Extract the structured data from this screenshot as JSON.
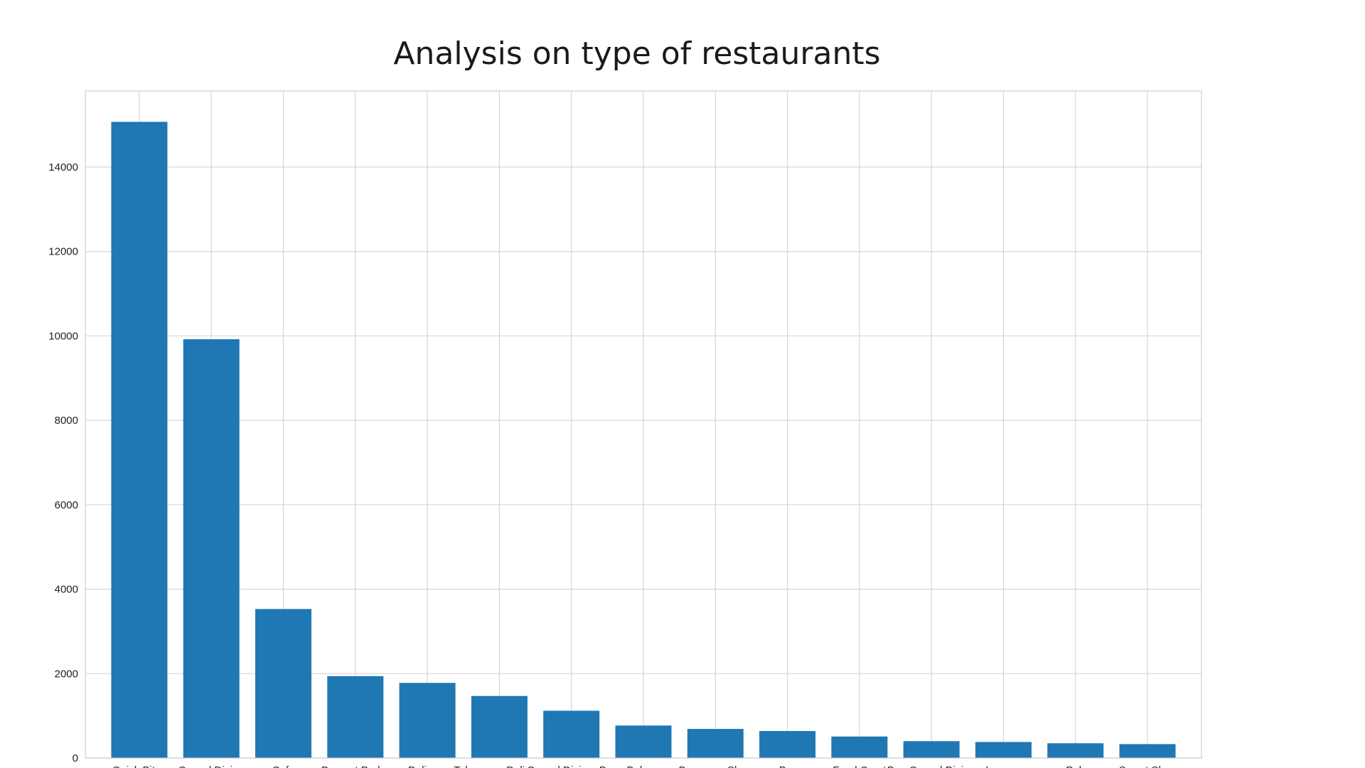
{
  "chart_data": {
    "type": "bar",
    "title": "Analysis on type of restaurants",
    "xlabel": "",
    "ylabel": "",
    "categories": [
      "Quick Bites",
      "Casual Dining",
      "Cafe",
      "Dessert Parlor",
      "Delivery",
      "Takeaway, Delivery",
      "Casual Dining, Bar",
      "Bakery",
      "Beverage Shop",
      "Bar",
      "Food Court",
      "Bar, Casual Dining",
      "Lounge",
      "Pub",
      "Sweet Shop"
    ],
    "values": [
      15070,
      9920,
      3530,
      1940,
      1780,
      1470,
      1120,
      770,
      690,
      640,
      510,
      400,
      380,
      350,
      330
    ],
    "ylim": [
      0,
      15800
    ],
    "yticks": [
      0,
      2000,
      4000,
      6000,
      8000,
      10000,
      12000,
      14000
    ],
    "grid": true,
    "bar_color": "#1f77b4",
    "legend": "none"
  }
}
